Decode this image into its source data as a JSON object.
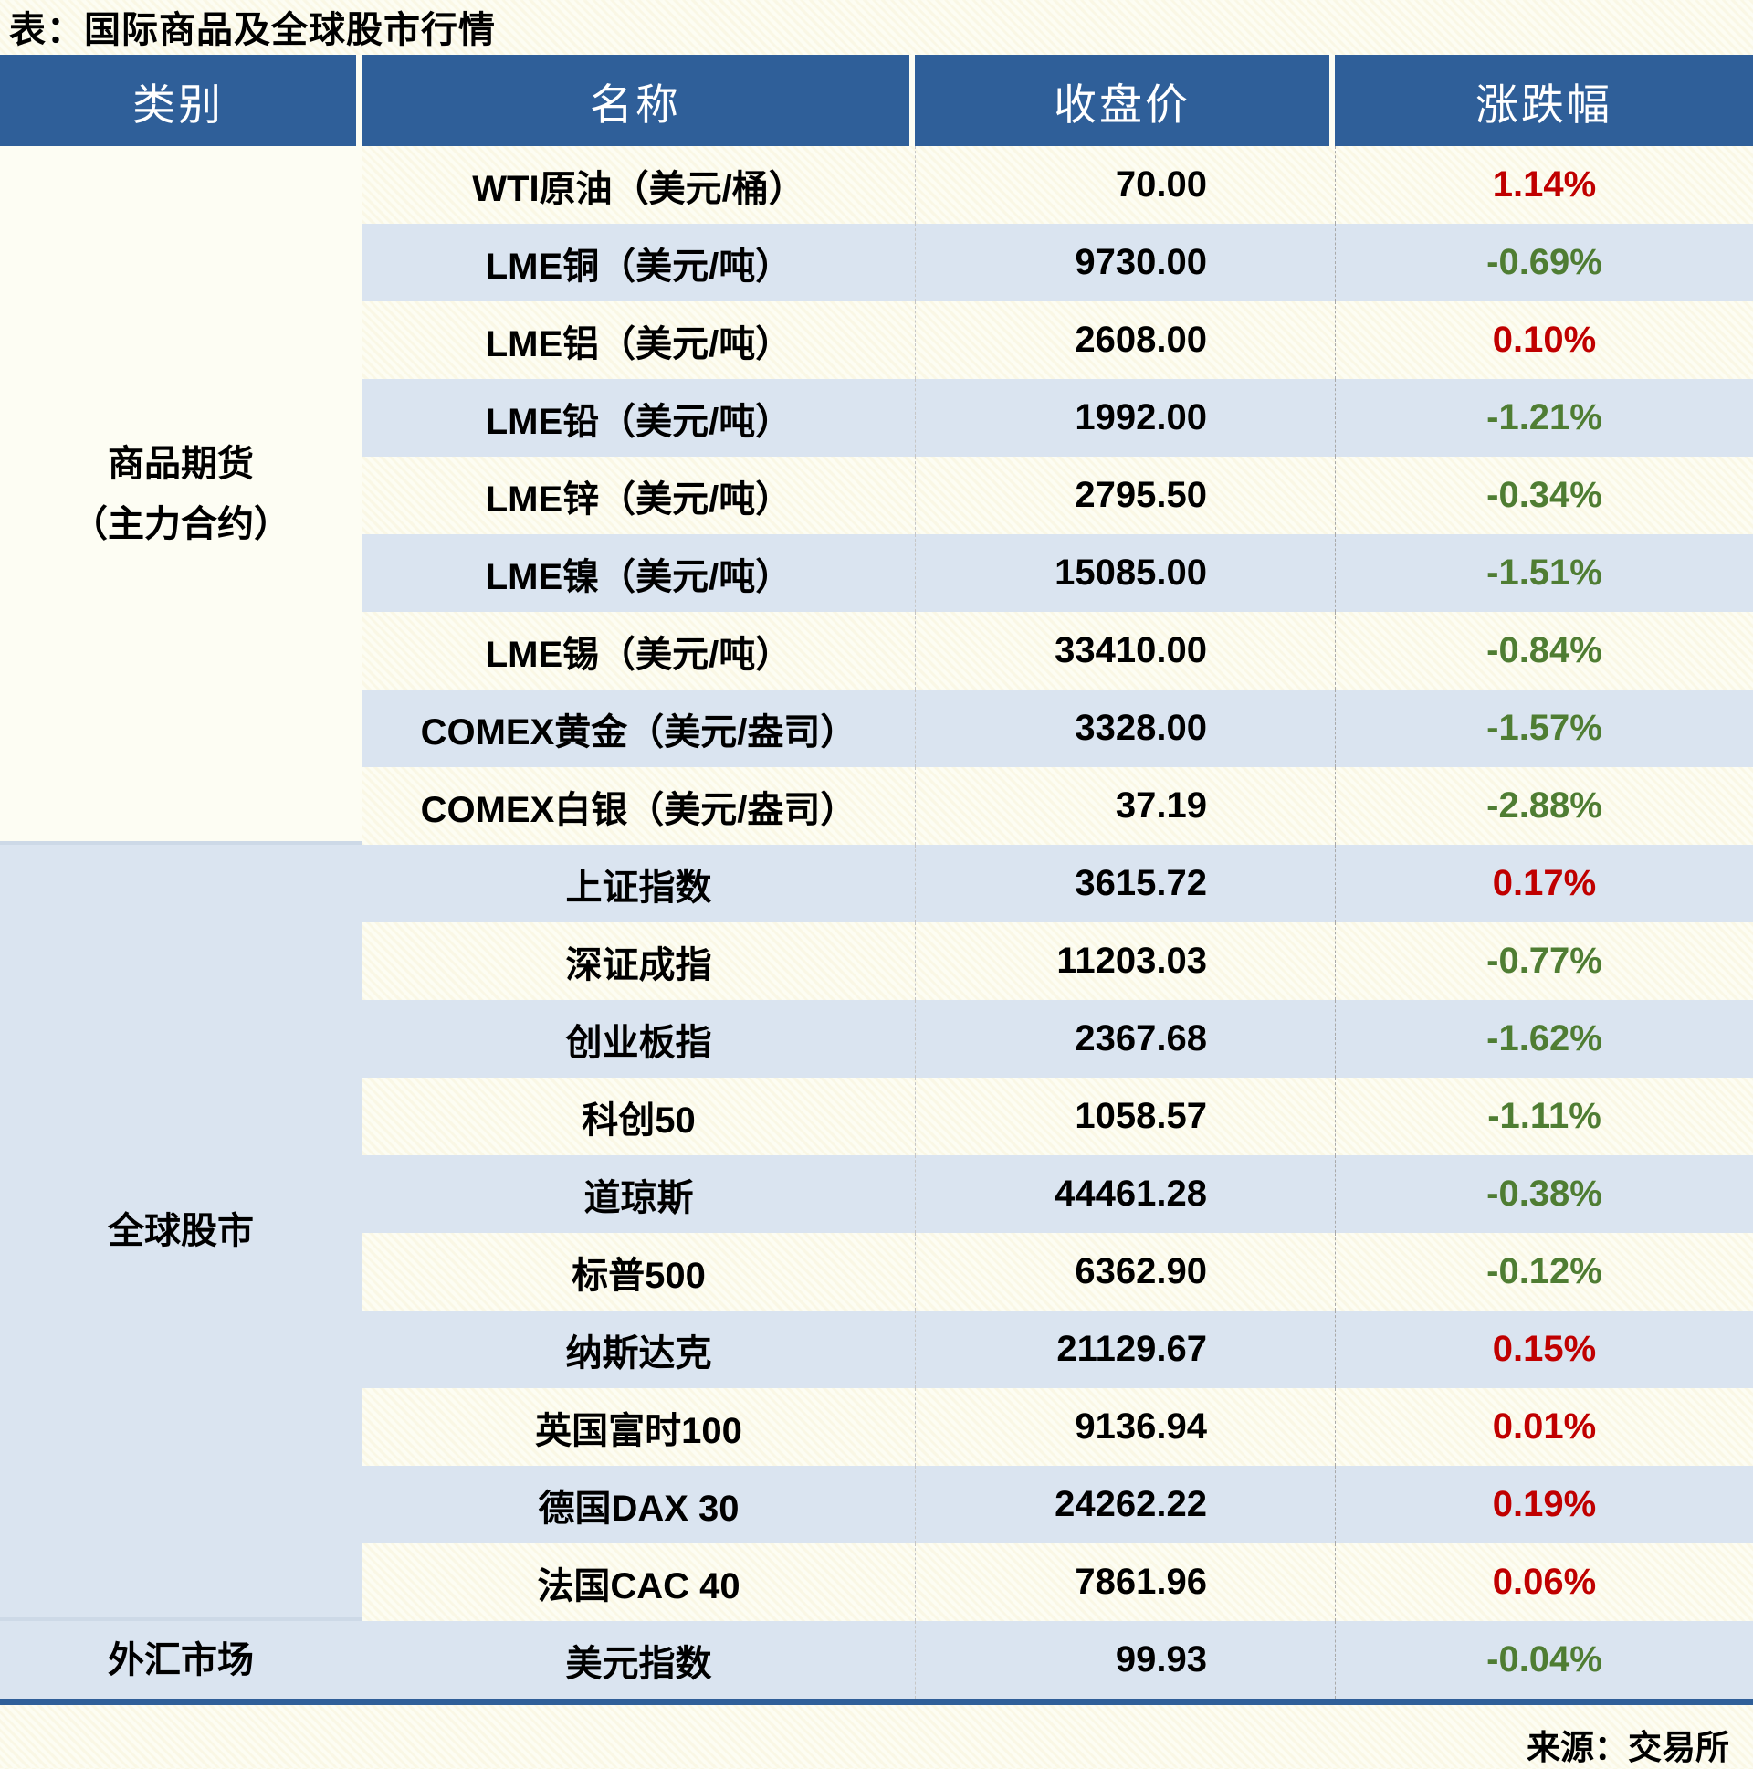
{
  "chart_data": {
    "type": "table",
    "title": "表：国际商品及全球股市行情",
    "columns": [
      "类别",
      "名称",
      "收盘价",
      "涨跌幅"
    ],
    "sections": [
      {
        "category": "商品期货\n（主力合约）",
        "rows": [
          {
            "name": "WTI原油（美元/桶）",
            "close": "70.00",
            "change": "1.14%"
          },
          {
            "name": "LME铜（美元/吨）",
            "close": "9730.00",
            "change": "-0.69%"
          },
          {
            "name": "LME铝（美元/吨）",
            "close": "2608.00",
            "change": "0.10%"
          },
          {
            "name": "LME铅（美元/吨）",
            "close": "1992.00",
            "change": "-1.21%"
          },
          {
            "name": "LME锌（美元/吨）",
            "close": "2795.50",
            "change": "-0.34%"
          },
          {
            "name": "LME镍（美元/吨）",
            "close": "15085.00",
            "change": "-1.51%"
          },
          {
            "name": "LME锡（美元/吨）",
            "close": "33410.00",
            "change": "-0.84%"
          },
          {
            "name": "COMEX黄金（美元/盎司）",
            "close": "3328.00",
            "change": "-1.57%"
          },
          {
            "name": "COMEX白银（美元/盎司）",
            "close": "37.19",
            "change": "-2.88%"
          }
        ]
      },
      {
        "category": "全球股市",
        "rows": [
          {
            "name": "上证指数",
            "close": "3615.72",
            "change": "0.17%"
          },
          {
            "name": "深证成指",
            "close": "11203.03",
            "change": "-0.77%"
          },
          {
            "name": "创业板指",
            "close": "2367.68",
            "change": "-1.62%"
          },
          {
            "name": "科创50",
            "close": "1058.57",
            "change": "-1.11%"
          },
          {
            "name": "道琼斯",
            "close": "44461.28",
            "change": "-0.38%"
          },
          {
            "name": "标普500",
            "close": "6362.90",
            "change": "-0.12%"
          },
          {
            "name": "纳斯达克",
            "close": "21129.67",
            "change": "0.15%"
          },
          {
            "name": "英国富时100",
            "close": "9136.94",
            "change": "0.01%"
          },
          {
            "name": "德国DAX 30",
            "close": "24262.22",
            "change": "0.19%"
          },
          {
            "name": "法国CAC 40",
            "close": "7861.96",
            "change": "0.06%"
          }
        ]
      },
      {
        "category": "外汇市场",
        "rows": [
          {
            "name": "美元指数",
            "close": "99.93",
            "change": "-0.04%"
          }
        ]
      }
    ],
    "source": "来源：交易所"
  },
  "colors": {
    "up_red": "#c00000",
    "down_green": "#4f7d33",
    "header_bg": "#2f5f99",
    "stripe_blue": "#dae4f0",
    "page_cream": "#fdfdf3"
  }
}
